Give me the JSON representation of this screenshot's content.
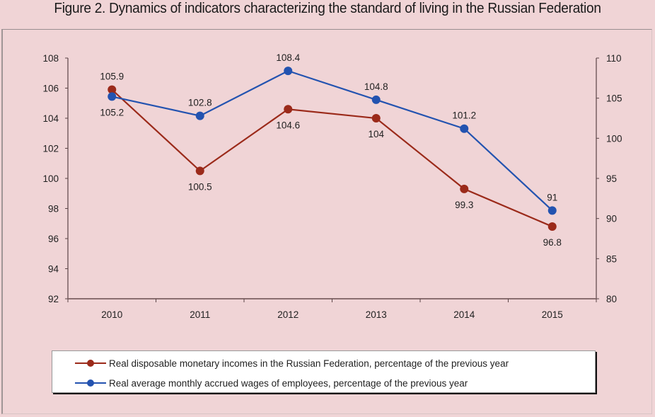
{
  "chart_data": {
    "type": "line",
    "title": "Figure 2. Dynamics of indicators characterizing the standard of living in the Russian Federation",
    "categories": [
      "2010",
      "2011",
      "2012",
      "2013",
      "2014",
      "2015"
    ],
    "series": [
      {
        "name": "Real disposable monetary incomes in the Russian Federation, percentage of the previous year",
        "axis": "left",
        "color": "#9b2a1a",
        "values": [
          105.9,
          100.5,
          104.6,
          104,
          99.3,
          96.8
        ],
        "labels": [
          "105.9",
          "100.5",
          "104.6",
          "104",
          "99.3",
          "96.8"
        ],
        "label_positions": [
          "above",
          "below",
          "below",
          "below",
          "below",
          "below"
        ]
      },
      {
        "name": "Real average monthly accrued wages of employees, percentage of the previous year",
        "axis": "right",
        "color": "#2353b0",
        "values": [
          105.2,
          102.8,
          108.4,
          104.8,
          101.2,
          91
        ],
        "labels": [
          "105.2",
          "102.8",
          "108.4",
          "104.8",
          "101.2",
          "91"
        ],
        "label_positions": [
          "below",
          "above",
          "above",
          "above",
          "above",
          "above"
        ]
      }
    ],
    "y_left": {
      "min": 92,
      "max": 108,
      "step": 2,
      "ticks": [
        "92",
        "94",
        "96",
        "98",
        "100",
        "102",
        "104",
        "106",
        "108"
      ]
    },
    "y_right": {
      "min": 80,
      "max": 110,
      "step": 5,
      "ticks": [
        "80",
        "85",
        "90",
        "95",
        "100",
        "105",
        "110"
      ]
    },
    "xlabel": "",
    "ylabel": "",
    "grid": false,
    "legend_position": "bottom"
  },
  "colors": {
    "background": "#f0d4d6",
    "axis": "#8a6e70",
    "income": "#9b2a1a",
    "wages": "#2353b0"
  }
}
